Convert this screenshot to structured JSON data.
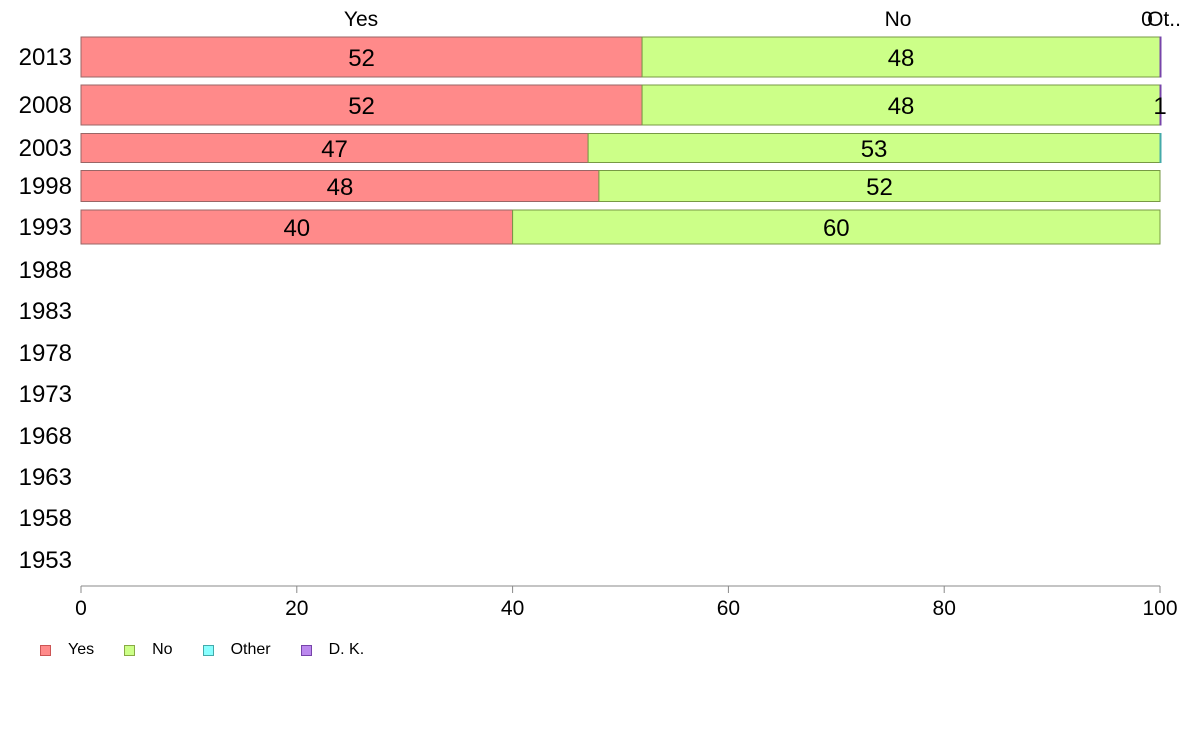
{
  "chart_data": {
    "type": "bar",
    "orientation": "horizontal",
    "stacked": true,
    "categories": [
      "2013",
      "2008",
      "2003",
      "1998",
      "1993",
      "1988",
      "1983",
      "1978",
      "1973",
      "1968",
      "1963",
      "1958",
      "1953"
    ],
    "series": [
      {
        "name": "Yes",
        "color": "#ff8a8a",
        "values": [
          52,
          52,
          47,
          48,
          40,
          null,
          null,
          null,
          null,
          null,
          null,
          null,
          null
        ],
        "labels": [
          "52",
          "52",
          "47",
          "48",
          "40",
          "",
          "",
          "",
          "",
          "",
          "",
          "",
          ""
        ]
      },
      {
        "name": "No",
        "color": "#ccff88",
        "values": [
          48,
          48,
          53,
          52,
          60,
          null,
          null,
          null,
          null,
          null,
          null,
          null,
          null
        ],
        "labels": [
          "48",
          "48",
          "53",
          "52",
          "60",
          "",
          "",
          "",
          "",
          "",
          "",
          "",
          ""
        ]
      },
      {
        "name": "Other",
        "color": "#88ffff",
        "values": [
          0,
          0,
          0.4,
          0,
          0,
          null,
          null,
          null,
          null,
          null,
          null,
          null,
          null
        ],
        "labels": [
          "",
          "",
          "",
          "",
          "",
          "",
          "",
          "",
          "",
          "",
          "",
          "",
          ""
        ]
      },
      {
        "name": "D. K.",
        "color": "#bb88ee",
        "values": [
          0.4,
          0.5,
          0,
          0,
          0,
          null,
          null,
          null,
          null,
          null,
          null,
          null,
          null
        ],
        "labels": [
          "",
          "1",
          "",
          "",
          "",
          "",
          "",
          "",
          "",
          "",
          "",
          "",
          ""
        ]
      }
    ],
    "top_labels": [
      "Yes",
      "No",
      "0",
      "Ot.."
    ],
    "x_ticks": [
      0,
      20,
      40,
      60,
      80,
      100
    ],
    "xlim": [
      0,
      100
    ],
    "grid": false,
    "legend": "bottom-left"
  }
}
